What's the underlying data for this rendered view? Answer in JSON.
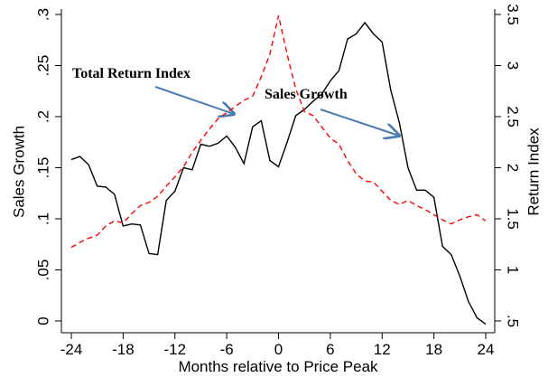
{
  "chart_data": {
    "type": "line",
    "x_label": "Months relative to Price Peak",
    "y_label": "Sales Growth",
    "y2_label": "Return Index",
    "x": [
      -24,
      -23,
      -22,
      -21,
      -20,
      -19,
      -18,
      -17,
      -16,
      -15,
      -14,
      -13,
      -12,
      -11,
      -10,
      -9,
      -8,
      -7,
      -6,
      -5,
      -4,
      -3,
      -2,
      -1,
      0,
      1,
      2,
      3,
      4,
      5,
      6,
      7,
      8,
      9,
      10,
      11,
      12,
      13,
      14,
      15,
      16,
      17,
      18,
      19,
      20,
      21,
      22,
      23,
      24
    ],
    "xlim": [
      -24,
      24
    ],
    "xticks": [
      -24,
      -18,
      -12,
      -6,
      0,
      6,
      12,
      18,
      24
    ],
    "ylim": [
      0,
      0.3
    ],
    "yticks": [
      0,
      {
        "value": 0.05,
        "label": ".05"
      },
      {
        "value": 0.1,
        "label": ".1"
      },
      {
        "value": 0.15,
        "label": ".15"
      },
      {
        "value": 0.2,
        "label": ".2"
      },
      {
        "value": 0.25,
        "label": ".25"
      },
      {
        "value": 0.3,
        "label": ".3"
      }
    ],
    "y2lim": [
      0.5,
      3.5
    ],
    "y2ticks": [
      {
        "value": 0.5,
        "label": ".5"
      },
      1,
      1.5,
      2,
      2.5,
      3,
      3.5
    ],
    "grid": false,
    "series": [
      {
        "name": "Sales Growth",
        "color": "#000000",
        "dash": false,
        "axis": "y",
        "values": [
          0.158,
          0.161,
          0.153,
          0.132,
          0.131,
          0.124,
          0.093,
          0.095,
          0.094,
          0.066,
          0.065,
          0.118,
          0.127,
          0.15,
          0.148,
          0.173,
          0.171,
          0.174,
          0.181,
          0.17,
          0.154,
          0.19,
          0.196,
          0.157,
          0.151,
          0.175,
          0.201,
          0.207,
          0.215,
          0.222,
          0.235,
          0.245,
          0.276,
          0.281,
          0.292,
          0.281,
          0.273,
          0.226,
          0.194,
          0.15,
          0.128,
          0.128,
          0.121,
          0.073,
          0.065,
          0.044,
          0.019,
          0.003,
          -0.003
        ]
      },
      {
        "name": "Total Return Index",
        "color": "#ff0000",
        "dash": true,
        "axis": "y2",
        "values": [
          1.22,
          1.27,
          1.31,
          1.34,
          1.43,
          1.48,
          1.46,
          1.55,
          1.63,
          1.66,
          1.72,
          1.82,
          1.91,
          2.01,
          2.15,
          2.27,
          2.38,
          2.48,
          2.54,
          2.6,
          2.66,
          2.7,
          2.89,
          3.11,
          3.49,
          3.11,
          2.77,
          2.55,
          2.51,
          2.4,
          2.29,
          2.23,
          2.07,
          1.94,
          1.87,
          1.86,
          1.77,
          1.68,
          1.64,
          1.68,
          1.63,
          1.59,
          1.54,
          1.49,
          1.45,
          1.49,
          1.52,
          1.54,
          1.48
        ]
      }
    ]
  }
}
